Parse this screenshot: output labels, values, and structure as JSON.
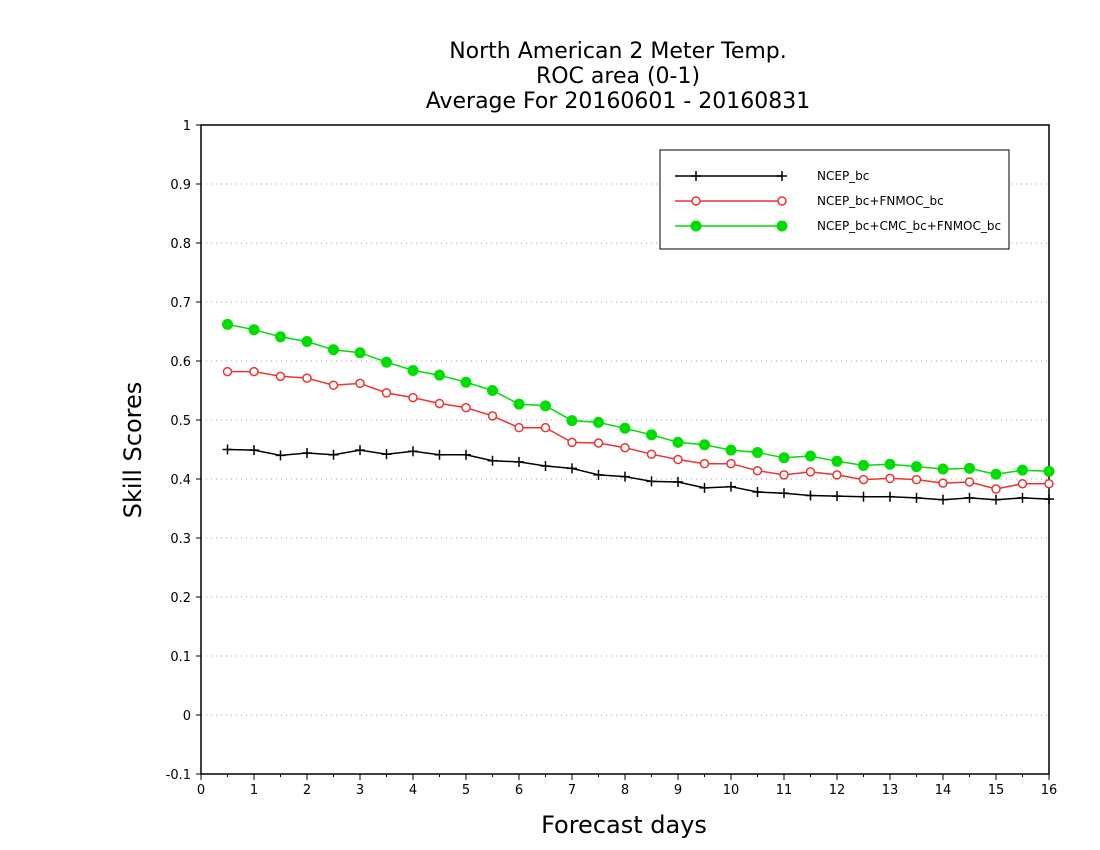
{
  "chart_data": {
    "type": "line",
    "title": [
      "North American 2 Meter Temp.",
      "ROC area (0-1)",
      "Average For 20160601 - 20160831"
    ],
    "xlabel": "Forecast days",
    "ylabel": "Skill Scores",
    "xlim": [
      0,
      16
    ],
    "ylim": [
      -0.1,
      1
    ],
    "xticks": [
      0,
      1,
      2,
      3,
      4,
      5,
      6,
      7,
      8,
      9,
      10,
      11,
      12,
      13,
      14,
      15,
      16
    ],
    "yticks": [
      -0.1,
      0,
      0.1,
      0.2,
      0.3,
      0.4,
      0.5,
      0.6,
      0.7,
      0.8,
      0.9,
      1
    ],
    "ytick_labels": [
      "-0.1",
      "0",
      "0.1",
      "0.2",
      "0.3",
      "0.4",
      "0.5",
      "0.6",
      "0.7",
      "0.8",
      "0.9",
      "1"
    ],
    "grid": "horizontal dotted",
    "legend_position": "top-right",
    "x": [
      0.5,
      1,
      1.5,
      2,
      2.5,
      3,
      3.5,
      4,
      4.5,
      5,
      5.5,
      6,
      6.5,
      7,
      7.5,
      8,
      8.5,
      9,
      9.5,
      10,
      10.5,
      11,
      11.5,
      12,
      12.5,
      13,
      13.5,
      14,
      14.5,
      15,
      15.5,
      16
    ],
    "series": [
      {
        "name": "NCEP_bc",
        "color": "#000000",
        "marker": "plus",
        "values": [
          0.45,
          0.449,
          0.44,
          0.444,
          0.441,
          0.449,
          0.442,
          0.447,
          0.441,
          0.441,
          0.431,
          0.429,
          0.422,
          0.418,
          0.407,
          0.404,
          0.396,
          0.395,
          0.385,
          0.387,
          0.378,
          0.376,
          0.372,
          0.371,
          0.37,
          0.37,
          0.368,
          0.365,
          0.368,
          0.365,
          0.368,
          0.366
        ]
      },
      {
        "name": "NCEP_bc+FNMOC_bc",
        "color": "#ee3333",
        "marker": "open-circle",
        "values": [
          0.582,
          0.582,
          0.574,
          0.571,
          0.559,
          0.562,
          0.546,
          0.538,
          0.528,
          0.521,
          0.507,
          0.487,
          0.487,
          0.462,
          0.461,
          0.453,
          0.442,
          0.433,
          0.426,
          0.426,
          0.414,
          0.407,
          0.412,
          0.407,
          0.399,
          0.401,
          0.399,
          0.393,
          0.395,
          0.383,
          0.392,
          0.392
        ]
      },
      {
        "name": "NCEP_bc+CMC_bc+FNMOC_bc",
        "color": "#00dd00",
        "marker": "filled-circle",
        "values": [
          0.662,
          0.653,
          0.641,
          0.633,
          0.619,
          0.614,
          0.598,
          0.584,
          0.576,
          0.564,
          0.55,
          0.527,
          0.524,
          0.499,
          0.496,
          0.486,
          0.475,
          0.462,
          0.458,
          0.449,
          0.445,
          0.436,
          0.439,
          0.43,
          0.423,
          0.425,
          0.421,
          0.417,
          0.418,
          0.408,
          0.415,
          0.413
        ]
      }
    ]
  }
}
